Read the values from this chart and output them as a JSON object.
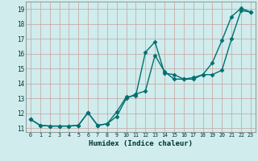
{
  "title": "",
  "xlabel": "Humidex (Indice chaleur)",
  "xlim": [
    -0.5,
    23.5
  ],
  "ylim": [
    10.75,
    19.5
  ],
  "yticks": [
    11,
    12,
    13,
    14,
    15,
    16,
    17,
    18,
    19
  ],
  "xticks": [
    0,
    1,
    2,
    3,
    4,
    5,
    6,
    7,
    8,
    9,
    10,
    11,
    12,
    13,
    14,
    15,
    16,
    17,
    18,
    19,
    20,
    21,
    22,
    23
  ],
  "background_color": "#d0ecec",
  "grid_color": "#c8a0a0",
  "line_color": "#007070",
  "line1_x": [
    0,
    1,
    2,
    3,
    4,
    5,
    6,
    7,
    8,
    9,
    10,
    11,
    12,
    13,
    14,
    15,
    16,
    17,
    18,
    19,
    20,
    21,
    22,
    23
  ],
  "line1_y": [
    11.6,
    11.2,
    11.15,
    11.15,
    11.15,
    11.2,
    12.05,
    11.2,
    11.3,
    12.1,
    13.1,
    13.2,
    16.1,
    16.8,
    14.7,
    14.6,
    14.3,
    14.3,
    14.6,
    14.6,
    14.9,
    17.0,
    18.9,
    18.8
  ],
  "line2_x": [
    0,
    1,
    2,
    3,
    4,
    5,
    6,
    7,
    8,
    9,
    10,
    11,
    12,
    13,
    14,
    15,
    16,
    17,
    18,
    19,
    20,
    21,
    22,
    23
  ],
  "line2_y": [
    11.6,
    11.2,
    11.15,
    11.15,
    11.15,
    11.2,
    12.05,
    11.2,
    11.3,
    11.8,
    13.0,
    13.3,
    13.5,
    15.9,
    14.8,
    14.3,
    14.3,
    14.4,
    14.6,
    15.4,
    16.9,
    18.5,
    19.05,
    18.8
  ],
  "marker": "D",
  "markersize": 2.5,
  "linewidth": 1.0
}
